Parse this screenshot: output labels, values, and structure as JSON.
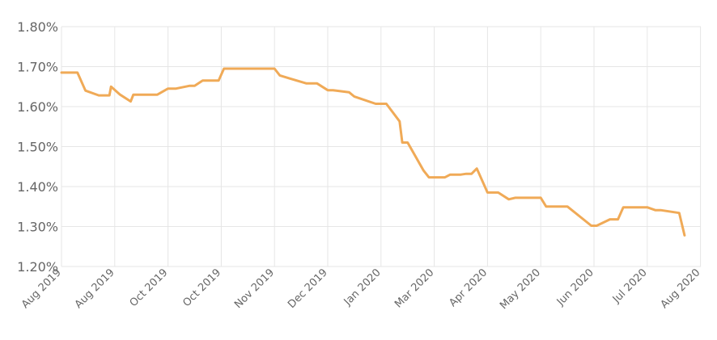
{
  "chart_data": {
    "type": "line",
    "title": "",
    "xlabel": "",
    "ylabel": "",
    "grid": true,
    "ylim": [
      1.2,
      1.8
    ],
    "y_ticks": [
      {
        "value": 1.2,
        "label": "1.20%"
      },
      {
        "value": 1.3,
        "label": "1.30%"
      },
      {
        "value": 1.4,
        "label": "1.40%"
      },
      {
        "value": 1.5,
        "label": "1.50%"
      },
      {
        "value": 1.6,
        "label": "1.60%"
      },
      {
        "value": 1.7,
        "label": "1.70%"
      },
      {
        "value": 1.8,
        "label": "1.80%"
      }
    ],
    "x_tick_labels": [
      "Aug 2019",
      "Aug 2019",
      "Oct 2019",
      "Oct 2019",
      "Nov 2019",
      "Dec 2019",
      "Jan 2020",
      "Mar 2020",
      "Apr 2020",
      "May 2020",
      "Jun 2020",
      "Jul 2020",
      "Aug 2020"
    ],
    "line_color": "#F0AA57",
    "grid_color": "#E6E6E6",
    "series": [
      {
        "x": [
          0.0,
          0.2,
          0.3,
          0.45,
          0.7,
          0.9,
          0.93,
          1.1,
          1.3,
          1.35,
          1.45,
          1.6,
          1.8,
          2.0,
          2.05,
          2.15,
          2.4,
          2.5,
          2.65,
          2.8,
          2.95,
          3.05,
          3.1,
          3.3,
          3.6,
          3.7,
          4.0,
          4.1,
          4.3,
          4.6,
          4.7,
          4.8,
          5.0,
          5.1,
          5.4,
          5.5,
          5.9,
          6.0,
          6.1,
          6.35,
          6.4,
          6.5,
          6.8,
          6.9,
          7.0,
          7.1,
          7.2,
          7.3,
          7.5,
          7.6,
          7.7,
          7.8,
          8.0,
          8.1,
          8.2,
          8.4,
          8.52,
          8.58,
          8.7,
          9.0,
          9.1,
          9.2,
          9.3,
          9.4,
          9.5,
          9.95,
          10.05,
          10.3,
          10.45,
          10.55,
          10.65,
          10.75,
          10.9,
          11.0,
          11.15,
          11.25,
          11.6,
          11.7
        ],
        "values": [
          1.685,
          1.685,
          1.685,
          1.64,
          1.628,
          1.628,
          1.65,
          1.63,
          1.613,
          1.63,
          1.63,
          1.63,
          1.63,
          1.645,
          1.645,
          1.645,
          1.652,
          1.652,
          1.665,
          1.665,
          1.665,
          1.695,
          1.695,
          1.695,
          1.695,
          1.695,
          1.695,
          1.678,
          1.67,
          1.658,
          1.658,
          1.658,
          1.641,
          1.641,
          1.636,
          1.625,
          1.607,
          1.607,
          1.607,
          1.563,
          1.51,
          1.51,
          1.44,
          1.423,
          1.423,
          1.423,
          1.423,
          1.43,
          1.43,
          1.432,
          1.432,
          1.445,
          1.385,
          1.385,
          1.385,
          1.368,
          1.372,
          1.372,
          1.372,
          1.372,
          1.35,
          1.35,
          1.35,
          1.35,
          1.35,
          1.302,
          1.302,
          1.318,
          1.318,
          1.348,
          1.348,
          1.348,
          1.348,
          1.348,
          1.341,
          1.341,
          1.334,
          1.278
        ]
      }
    ]
  }
}
